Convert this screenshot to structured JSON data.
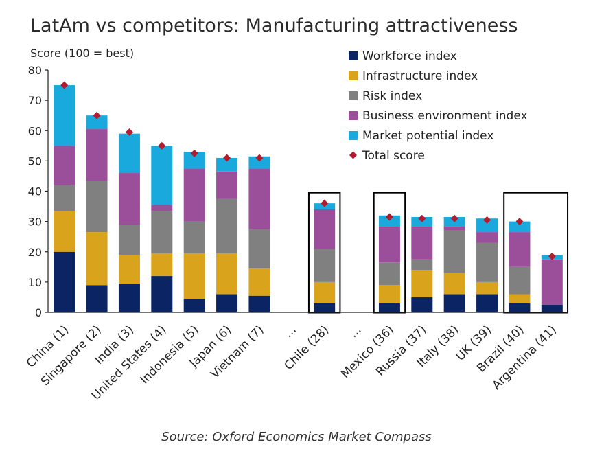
{
  "chart_data": {
    "type": "bar",
    "stacked": true,
    "title": "LatAm vs competitors: Manufacturing attractiveness",
    "ylabel": "Score (100 = best)",
    "xlabel": "",
    "ylim": [
      0,
      80
    ],
    "yticks": [
      0,
      10,
      20,
      30,
      40,
      50,
      60,
      70,
      80
    ],
    "grid": false,
    "legend_position": "top-right",
    "categories": [
      "China (1)",
      "Singapore (2)",
      "India (3)",
      "United States (4)",
      "Indonesia (5)",
      "Japan (6)",
      "Vietnam (7)",
      "...",
      "Chile (28)",
      "...",
      "Mexico (36)",
      "Russia (37)",
      "Italy (38)",
      "UK (39)",
      "Brazil (40)",
      "Argentina (41)"
    ],
    "series": [
      {
        "name": "Workforce index",
        "color": "#0b2463",
        "values": [
          20,
          9,
          9.5,
          12,
          4.5,
          6,
          5.5,
          null,
          3,
          null,
          3,
          5,
          6,
          6,
          3,
          2.5
        ]
      },
      {
        "name": "Infrastructure index",
        "color": "#d9a41c",
        "values": [
          13.5,
          17.5,
          9.5,
          7.5,
          15,
          13.5,
          9,
          null,
          7,
          null,
          6,
          9,
          7,
          4,
          3,
          0
        ]
      },
      {
        "name": "Risk index",
        "color": "#808080",
        "values": [
          8.5,
          17,
          10,
          14,
          10.5,
          18,
          13,
          null,
          11,
          null,
          7.5,
          3.5,
          14,
          13,
          9,
          0
        ]
      },
      {
        "name": "Business environment index",
        "color": "#9b4f9b",
        "values": [
          13,
          17,
          17,
          2,
          17.5,
          9,
          20,
          null,
          13,
          null,
          12,
          11,
          1.5,
          3.5,
          11.5,
          15
        ]
      },
      {
        "name": "Market potential index",
        "color": "#1aa9dd",
        "values": [
          20,
          4.5,
          13,
          19.5,
          5.5,
          4.5,
          4,
          null,
          2,
          null,
          3.5,
          3,
          3,
          4.5,
          3.5,
          1.5
        ]
      }
    ],
    "total_score": {
      "name": "Total score",
      "color": "#b01c2e",
      "values": [
        75,
        65,
        59.5,
        55,
        52.5,
        51,
        51,
        null,
        36,
        null,
        31.5,
        31,
        31,
        30.5,
        30,
        18.5
      ]
    },
    "highlighted": [
      "Chile (28)",
      "Mexico (36)",
      "Brazil (40)",
      "Argentina (41)"
    ],
    "source": "Source: Oxford Economics Market Compass"
  }
}
